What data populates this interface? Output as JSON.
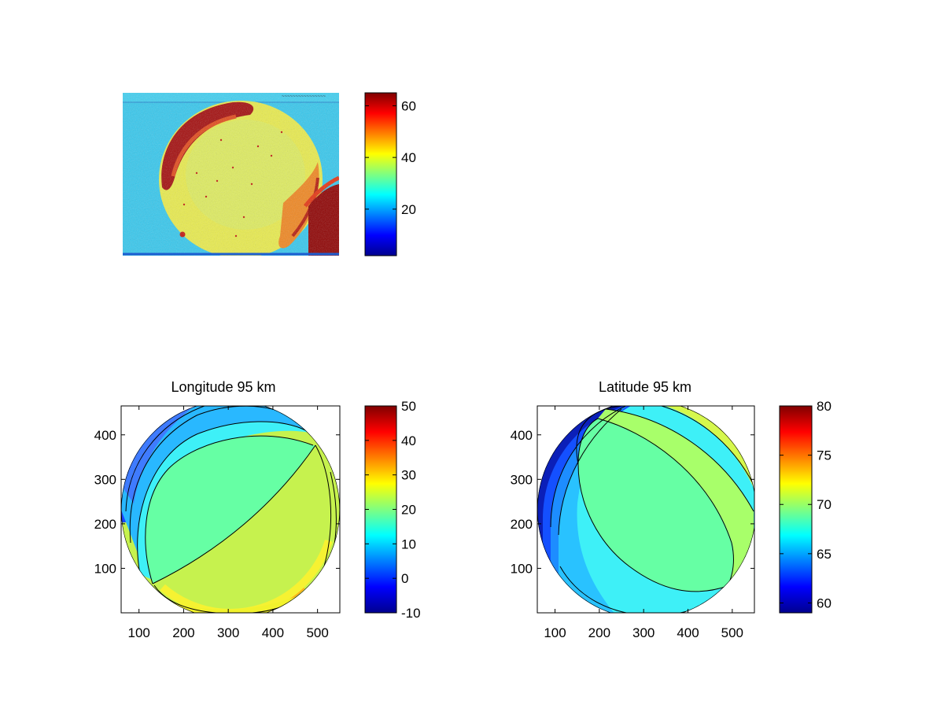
{
  "figure": {
    "background": "#ffffff",
    "colormap": "jet"
  },
  "chart_data": [
    {
      "type": "heatmap",
      "title": "",
      "description": "raw image panel",
      "colorbar": {
        "ticks": [
          "20",
          "40",
          "60"
        ],
        "range": [
          2,
          65
        ]
      },
      "axes_visible": false
    },
    {
      "type": "heatmap",
      "title": "Longitude 95 km",
      "xticks": [
        "100",
        "200",
        "300",
        "400",
        "500"
      ],
      "yticks": [
        "100",
        "200",
        "300",
        "400"
      ],
      "xlim": [
        60,
        550
      ],
      "ylim": [
        0,
        465
      ],
      "colorbar": {
        "ticks": [
          "-10",
          "0",
          "10",
          "20",
          "30",
          "40",
          "50"
        ],
        "range": [
          -10,
          50
        ]
      },
      "contours": "filled, black contour lines"
    },
    {
      "type": "heatmap",
      "title": "Latitude 95 km",
      "xticks": [
        "100",
        "200",
        "300",
        "400",
        "500"
      ],
      "yticks": [
        "100",
        "200",
        "300",
        "400"
      ],
      "xlim": [
        60,
        550
      ],
      "ylim": [
        0,
        465
      ],
      "colorbar": {
        "ticks": [
          "60",
          "65",
          "70",
          "75",
          "80"
        ],
        "range": [
          59,
          80
        ]
      },
      "contours": "filled, black contour lines"
    }
  ]
}
